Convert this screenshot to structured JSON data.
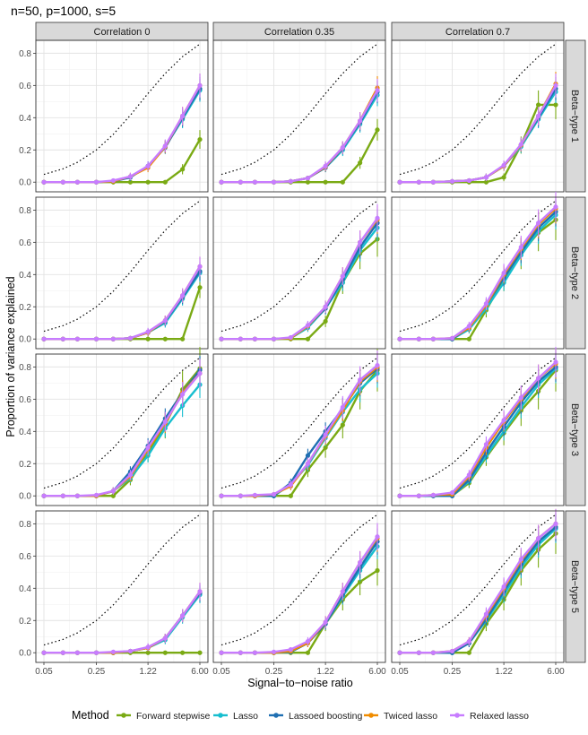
{
  "chart_data": {
    "type": "line",
    "title": "n=50, p=1000, s=5",
    "xlabel": "Signal−to−noise ratio",
    "ylabel": "Proportion of variance explained",
    "x_scale": "log",
    "xlim": [
      0.05,
      6.0
    ],
    "ylim": [
      -0.06,
      0.88
    ],
    "x_ticks": [
      0.05,
      0.25,
      1.22,
      6.0
    ],
    "x_tick_labels": [
      "0.05",
      "0.25",
      "1.22",
      "6.00"
    ],
    "y_ticks": [
      0.0,
      0.2,
      0.4,
      0.6,
      0.8
    ],
    "y_tick_labels": [
      "0.0",
      "0.2",
      "0.4",
      "0.6",
      "0.8"
    ],
    "x": [
      0.05,
      0.09,
      0.14,
      0.25,
      0.42,
      0.71,
      1.22,
      2.07,
      3.52,
      6.0
    ],
    "oracle": [
      0.048,
      0.083,
      0.123,
      0.2,
      0.296,
      0.415,
      0.55,
      0.674,
      0.779,
      0.857
    ],
    "columns": [
      "Correlation 0",
      "Correlation 0.35",
      "Correlation 0.7"
    ],
    "rows": [
      "Beta−type 1",
      "Beta−type 2",
      "Beta−type 3",
      "Beta−type 5"
    ],
    "legend": {
      "title": "Method",
      "position": "bottom",
      "entries": [
        "Forward stepwise",
        "Lasso",
        "Lassoed boosting",
        "Twiced lasso",
        "Relaxed lasso"
      ]
    },
    "colors": {
      "Forward stepwise": "#7aaa14",
      "Lasso": "#17becf",
      "Lassoed boosting": "#1f6fb2",
      "Twiced lasso": "#f08c00",
      "Relaxed lasso": "#c77cff"
    },
    "panels": [
      {
        "row": 0,
        "col": 0,
        "series": [
          {
            "name": "Forward stepwise",
            "values": [
              0,
              0,
              0,
              0,
              0,
              0,
              0,
              0,
              0.08,
              0.265
            ]
          },
          {
            "name": "Lasso",
            "values": [
              0,
              0,
              0,
              0,
              0.005,
              0.03,
              0.1,
              0.22,
              0.39,
              0.57
            ]
          },
          {
            "name": "Lassoed boosting",
            "values": [
              0,
              0,
              0,
              0,
              0.005,
              0.03,
              0.1,
              0.215,
              0.4,
              0.58
            ]
          },
          {
            "name": "Twiced lasso",
            "values": [
              0,
              0,
              0,
              0,
              0.005,
              0.035,
              0.09,
              0.22,
              0.41,
              0.6
            ]
          },
          {
            "name": "Relaxed lasso",
            "values": [
              0,
              0,
              0,
              0,
              0.01,
              0.035,
              0.1,
              0.225,
              0.41,
              0.6
            ]
          }
        ]
      },
      {
        "row": 0,
        "col": 1,
        "series": [
          {
            "name": "Forward stepwise",
            "values": [
              0,
              0,
              0,
              0,
              0,
              0,
              0,
              0,
              0.12,
              0.325
            ]
          },
          {
            "name": "Lasso",
            "values": [
              0,
              0,
              0,
              0,
              0.005,
              0.025,
              0.09,
              0.2,
              0.36,
              0.54
            ]
          },
          {
            "name": "Lassoed boosting",
            "values": [
              0,
              0,
              0,
              0,
              0.005,
              0.025,
              0.09,
              0.21,
              0.37,
              0.56
            ]
          },
          {
            "name": "Twiced lasso",
            "values": [
              0,
              0,
              0,
              0,
              0.005,
              0.025,
              0.095,
              0.215,
              0.38,
              0.585
            ]
          },
          {
            "name": "Relaxed lasso",
            "values": [
              0,
              0,
              0,
              0,
              0.005,
              0.025,
              0.1,
              0.215,
              0.38,
              0.57
            ]
          }
        ]
      },
      {
        "row": 0,
        "col": 2,
        "series": [
          {
            "name": "Forward stepwise",
            "values": [
              0,
              0,
              0,
              0,
              0,
              0,
              0.03,
              0.23,
              0.48,
              0.48
            ]
          },
          {
            "name": "Lasso",
            "values": [
              0,
              0,
              0,
              0.005,
              0.01,
              0.03,
              0.1,
              0.22,
              0.39,
              0.56
            ]
          },
          {
            "name": "Lassoed boosting",
            "values": [
              0,
              0,
              0,
              0.005,
              0.01,
              0.03,
              0.1,
              0.23,
              0.4,
              0.58
            ]
          },
          {
            "name": "Twiced lasso",
            "values": [
              0,
              0,
              0,
              0.005,
              0.01,
              0.03,
              0.1,
              0.23,
              0.41,
              0.61
            ]
          },
          {
            "name": "Relaxed lasso",
            "values": [
              0,
              0,
              0,
              0.005,
              0.01,
              0.03,
              0.105,
              0.235,
              0.41,
              0.6
            ]
          }
        ]
      },
      {
        "row": 1,
        "col": 0,
        "series": [
          {
            "name": "Forward stepwise",
            "values": [
              0,
              0,
              0,
              0,
              0,
              0,
              0,
              0,
              0,
              0.32
            ]
          },
          {
            "name": "Lasso",
            "values": [
              0,
              0,
              0,
              0,
              0,
              0.005,
              0.04,
              0.1,
              0.25,
              0.41
            ]
          },
          {
            "name": "Lassoed boosting",
            "values": [
              0,
              0,
              0,
              0,
              0,
              0.005,
              0.04,
              0.11,
              0.26,
              0.42
            ]
          },
          {
            "name": "Twiced lasso",
            "values": [
              0,
              0,
              0,
              0,
              0,
              0.005,
              0.04,
              0.115,
              0.27,
              0.45
            ]
          },
          {
            "name": "Relaxed lasso",
            "values": [
              0,
              0,
              0,
              0,
              0,
              0.005,
              0.045,
              0.115,
              0.27,
              0.45
            ]
          }
        ]
      },
      {
        "row": 1,
        "col": 1,
        "series": [
          {
            "name": "Forward stepwise",
            "values": [
              0,
              0,
              0,
              0,
              0,
              0,
              0.11,
              0.35,
              0.53,
              0.62
            ]
          },
          {
            "name": "Lasso",
            "values": [
              0,
              0,
              0,
              0,
              0.005,
              0.07,
              0.19,
              0.35,
              0.55,
              0.69
            ]
          },
          {
            "name": "Lassoed boosting",
            "values": [
              0,
              0,
              0,
              0,
              0.005,
              0.08,
              0.19,
              0.37,
              0.57,
              0.72
            ]
          },
          {
            "name": "Twiced lasso",
            "values": [
              0,
              0,
              0,
              0,
              0.005,
              0.08,
              0.2,
              0.39,
              0.6,
              0.74
            ]
          },
          {
            "name": "Relaxed lasso",
            "values": [
              0,
              0,
              0,
              0,
              0.01,
              0.085,
              0.2,
              0.39,
              0.6,
              0.75
            ]
          }
        ]
      },
      {
        "row": 1,
        "col": 2,
        "series": [
          {
            "name": "Forward stepwise",
            "values": [
              0,
              0,
              0,
              0,
              0,
              0.18,
              0.37,
              0.53,
              0.66,
              0.74
            ]
          },
          {
            "name": "Lasso",
            "values": [
              0,
              0,
              0,
              0,
              0.06,
              0.19,
              0.35,
              0.52,
              0.67,
              0.77
            ]
          },
          {
            "name": "Lassoed boosting",
            "values": [
              0,
              0,
              0,
              0,
              0.07,
              0.21,
              0.38,
              0.54,
              0.69,
              0.79
            ]
          },
          {
            "name": "Twiced lasso",
            "values": [
              0,
              0,
              0,
              0.005,
              0.07,
              0.21,
              0.4,
              0.56,
              0.71,
              0.81
            ]
          },
          {
            "name": "Relaxed lasso",
            "values": [
              0,
              0,
              0,
              0.005,
              0.08,
              0.22,
              0.41,
              0.57,
              0.72,
              0.82
            ]
          }
        ]
      },
      {
        "row": 2,
        "col": 0,
        "series": [
          {
            "name": "Forward stepwise",
            "values": [
              0,
              0,
              0,
              0,
              0,
              0.1,
              0.27,
              0.44,
              0.66,
              0.79
            ]
          },
          {
            "name": "Lasso",
            "values": [
              0,
              0,
              0,
              0,
              0.03,
              0.11,
              0.25,
              0.42,
              0.56,
              0.69
            ]
          },
          {
            "name": "Lassoed boosting",
            "values": [
              0,
              0,
              0,
              0,
              0.03,
              0.15,
              0.31,
              0.48,
              0.64,
              0.78
            ]
          },
          {
            "name": "Twiced lasso",
            "values": [
              0,
              0,
              0,
              0,
              0.03,
              0.12,
              0.29,
              0.45,
              0.64,
              0.76
            ]
          },
          {
            "name": "Relaxed lasso",
            "values": [
              0,
              0,
              0,
              0.005,
              0.03,
              0.13,
              0.3,
              0.46,
              0.63,
              0.76
            ]
          }
        ]
      },
      {
        "row": 2,
        "col": 1,
        "series": [
          {
            "name": "Forward stepwise",
            "values": [
              0,
              0,
              0,
              0,
              0,
              0.16,
              0.3,
              0.44,
              0.65,
              0.78
            ]
          },
          {
            "name": "Lasso",
            "values": [
              0,
              0,
              0,
              0,
              0.07,
              0.19,
              0.36,
              0.52,
              0.66,
              0.76
            ]
          },
          {
            "name": "Lassoed boosting",
            "values": [
              0,
              0,
              0,
              0,
              0.08,
              0.25,
              0.4,
              0.54,
              0.7,
              0.79
            ]
          },
          {
            "name": "Twiced lasso",
            "values": [
              0,
              0,
              0,
              0.01,
              0.06,
              0.2,
              0.37,
              0.53,
              0.71,
              0.8
            ]
          },
          {
            "name": "Relaxed lasso",
            "values": [
              0,
              0,
              0.005,
              0.01,
              0.07,
              0.2,
              0.38,
              0.55,
              0.72,
              0.81
            ]
          }
        ]
      },
      {
        "row": 2,
        "col": 2,
        "series": [
          {
            "name": "Forward stepwise",
            "values": [
              0,
              0,
              0,
              0,
              0.08,
              0.24,
              0.39,
              0.53,
              0.65,
              0.78
            ]
          },
          {
            "name": "Lasso",
            "values": [
              0,
              0,
              0,
              0,
              0.09,
              0.25,
              0.4,
              0.55,
              0.69,
              0.79
            ]
          },
          {
            "name": "Lassoed boosting",
            "values": [
              0,
              0,
              0,
              0,
              0.1,
              0.27,
              0.43,
              0.58,
              0.71,
              0.8
            ]
          },
          {
            "name": "Twiced lasso",
            "values": [
              0,
              0,
              0.005,
              0.01,
              0.12,
              0.3,
              0.46,
              0.6,
              0.73,
              0.82
            ]
          },
          {
            "name": "Relaxed lasso",
            "values": [
              0,
              0,
              0.005,
              0.02,
              0.13,
              0.32,
              0.47,
              0.61,
              0.73,
              0.83
            ]
          }
        ]
      },
      {
        "row": 3,
        "col": 0,
        "series": [
          {
            "name": "Forward stepwise",
            "values": [
              0,
              0,
              0,
              0,
              0,
              0,
              0,
              0,
              0,
              0
            ]
          },
          {
            "name": "Lasso",
            "values": [
              0,
              0,
              0,
              0,
              0,
              0.01,
              0.03,
              0.08,
              0.22,
              0.36
            ]
          },
          {
            "name": "Lassoed boosting",
            "values": [
              0,
              0,
              0,
              0,
              0,
              0.01,
              0.03,
              0.09,
              0.23,
              0.37
            ]
          },
          {
            "name": "Twiced lasso",
            "values": [
              0,
              0,
              0,
              0,
              0,
              0.01,
              0.03,
              0.09,
              0.23,
              0.38
            ]
          },
          {
            "name": "Relaxed lasso",
            "values": [
              0,
              0,
              0,
              0,
              0.005,
              0.01,
              0.035,
              0.09,
              0.23,
              0.38
            ]
          }
        ]
      },
      {
        "row": 3,
        "col": 1,
        "series": [
          {
            "name": "Forward stepwise",
            "values": [
              0,
              0,
              0,
              0,
              0,
              0,
              0.18,
              0.33,
              0.44,
              0.51
            ]
          },
          {
            "name": "Lasso",
            "values": [
              0,
              0,
              0,
              0,
              0.005,
              0.06,
              0.18,
              0.35,
              0.51,
              0.66
            ]
          },
          {
            "name": "Lassoed boosting",
            "values": [
              0,
              0,
              0,
              0,
              0.005,
              0.06,
              0.18,
              0.36,
              0.53,
              0.69
            ]
          },
          {
            "name": "Twiced lasso",
            "values": [
              0,
              0,
              0,
              0,
              0.01,
              0.06,
              0.19,
              0.38,
              0.56,
              0.71
            ]
          },
          {
            "name": "Relaxed lasso",
            "values": [
              0,
              0,
              0,
              0.005,
              0.02,
              0.07,
              0.19,
              0.38,
              0.56,
              0.72
            ]
          }
        ]
      },
      {
        "row": 3,
        "col": 2,
        "series": [
          {
            "name": "Forward stepwise",
            "values": [
              0,
              0,
              0,
              0,
              0,
              0.18,
              0.33,
              0.51,
              0.64,
              0.74
            ]
          },
          {
            "name": "Lasso",
            "values": [
              0,
              0,
              0,
              0,
              0.06,
              0.2,
              0.36,
              0.53,
              0.67,
              0.77
            ]
          },
          {
            "name": "Lassoed boosting",
            "values": [
              0,
              0,
              0,
              0,
              0.06,
              0.21,
              0.38,
              0.55,
              0.69,
              0.78
            ]
          },
          {
            "name": "Twiced lasso",
            "values": [
              0,
              0,
              0,
              0.01,
              0.07,
              0.23,
              0.4,
              0.57,
              0.71,
              0.8
            ]
          },
          {
            "name": "Relaxed lasso",
            "values": [
              0,
              0,
              0,
              0.01,
              0.07,
              0.24,
              0.41,
              0.58,
              0.71,
              0.8
            ]
          }
        ]
      }
    ]
  }
}
